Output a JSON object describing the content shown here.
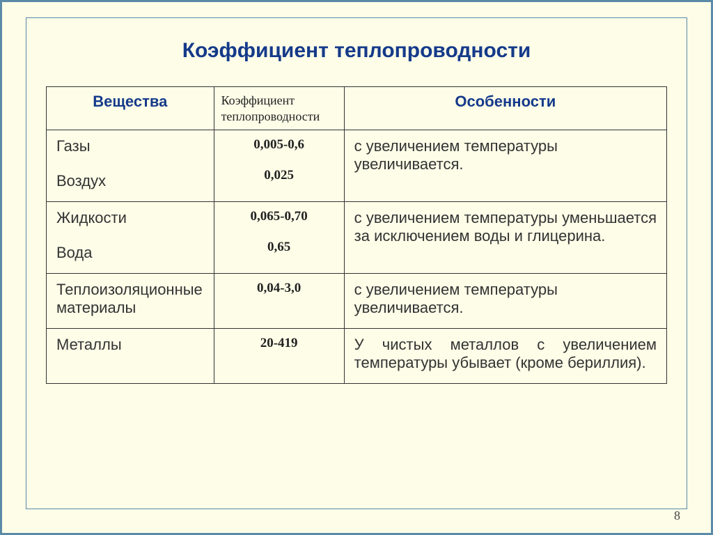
{
  "colors": {
    "background": "#fdfde8",
    "outer_border": "#5a8aa8",
    "title_color": "#153a8a",
    "cell_border": "#333333",
    "body_text": "#333333"
  },
  "typography": {
    "title_fontsize": 30,
    "header_fontsize": 22,
    "body_fontsize": 22,
    "coef_fontsize": 19,
    "coef_header_fontsize": 18
  },
  "title": "Коэффициент теплопроводности",
  "columns": {
    "substances": "Вещества",
    "coefficient": "Коэффициент теплопроводности",
    "features": "Особенности"
  },
  "rows": [
    {
      "substance_line1": "Газы",
      "substance_line2": "Воздух",
      "coef_line1": "0,005-0,6",
      "coef_line2": "0,025",
      "feature": "с увеличением температуры увеличивается.",
      "justify": false
    },
    {
      "substance_line1": "Жидкости",
      "substance_line2": "Вода",
      "coef_line1": "0,065-0,70",
      "coef_line2": "0,65",
      "feature": "с увеличением температуры уменьшается за исключением воды и глицерина.",
      "justify": true
    },
    {
      "substance_line1": "Теплоизоляционные материалы",
      "substance_line2": "",
      "coef_line1": "0,04-3,0",
      "coef_line2": "",
      "feature": "с увеличением температуры увеличивается.",
      "justify": false
    },
    {
      "substance_line1": "Металлы",
      "substance_line2": "",
      "coef_line1": "20-419",
      "coef_line2": "",
      "feature": "У чистых металлов с увеличением температуры убывает (кроме бериллия).",
      "justify": true
    }
  ],
  "page_number": "8"
}
